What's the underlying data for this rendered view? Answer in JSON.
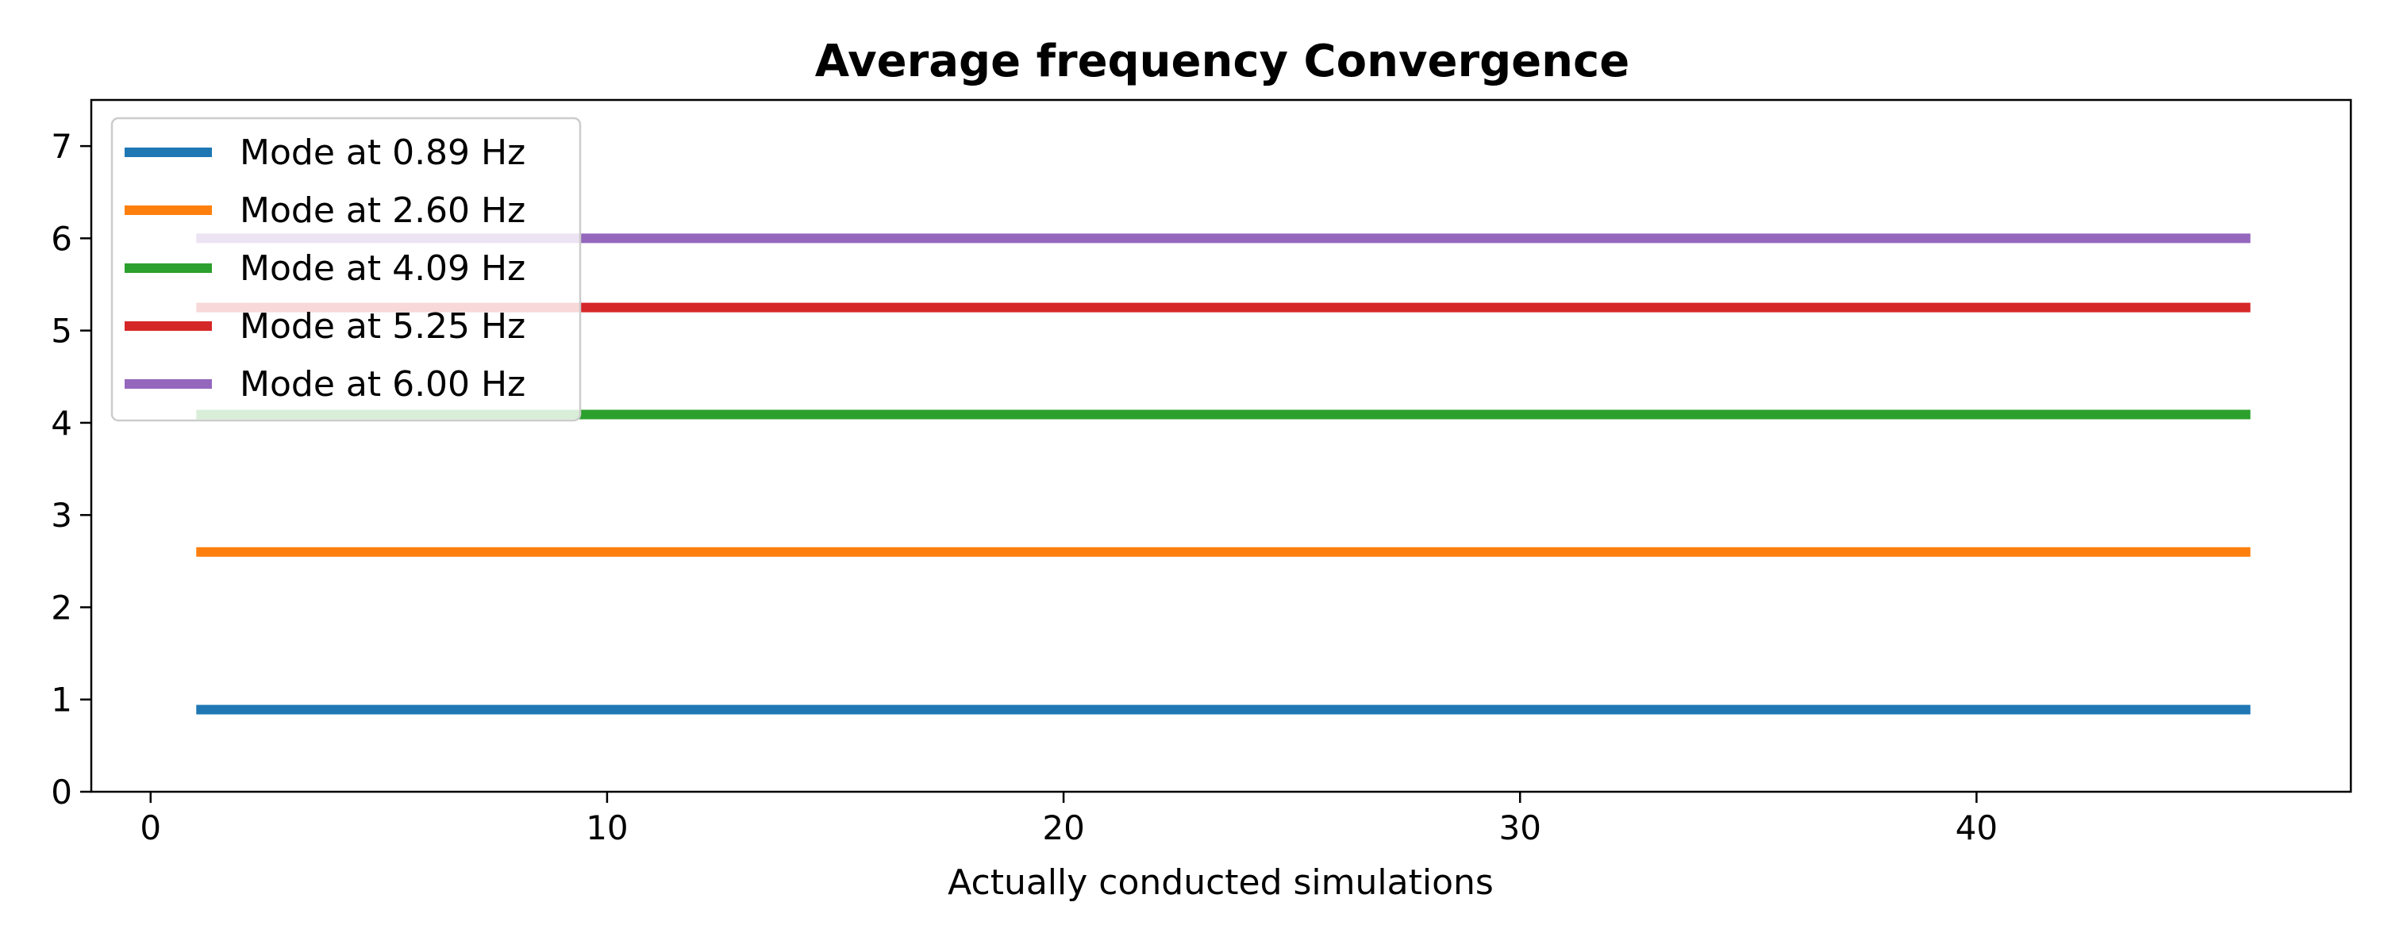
{
  "chart_data": {
    "type": "line",
    "title": "Average frequency Convergence",
    "xlabel": "Actually conducted simulations",
    "ylabel": "",
    "xlim": [
      -1.3,
      48.2
    ],
    "ylim": [
      0,
      7.5
    ],
    "xticks": [
      0,
      10,
      20,
      30,
      40
    ],
    "yticks": [
      0,
      1,
      2,
      3,
      4,
      5,
      6,
      7
    ],
    "grid": false,
    "legend_position": "upper-left",
    "series": [
      {
        "name": "Mode at 0.89 Hz",
        "color": "#1f77b4",
        "x": [
          1,
          46
        ],
        "y": [
          0.89,
          0.89
        ]
      },
      {
        "name": "Mode at 2.60 Hz",
        "color": "#ff7f0e",
        "x": [
          1,
          46
        ],
        "y": [
          2.6,
          2.6
        ]
      },
      {
        "name": "Mode at 4.09 Hz",
        "color": "#2ca02c",
        "x": [
          1,
          46
        ],
        "y": [
          4.09,
          4.09
        ]
      },
      {
        "name": "Mode at 5.25 Hz",
        "color": "#d62728",
        "x": [
          1,
          46
        ],
        "y": [
          5.25,
          5.25
        ]
      },
      {
        "name": "Mode at 6.00 Hz",
        "color": "#9467bd",
        "x": [
          1,
          46
        ],
        "y": [
          6.0,
          6.0
        ]
      }
    ]
  }
}
